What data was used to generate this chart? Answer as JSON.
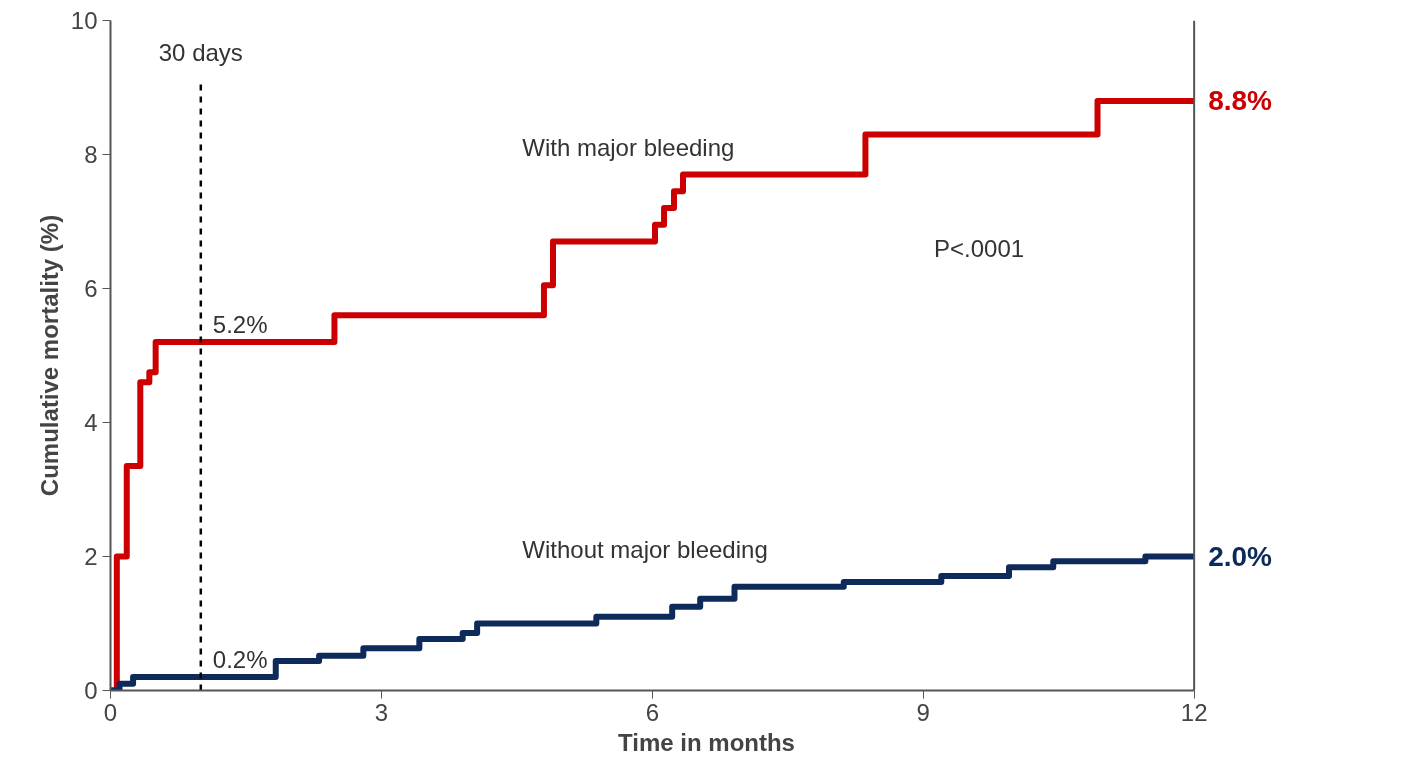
{
  "chart_data": {
    "type": "step",
    "xlabel": "Time in months",
    "ylabel": "Cumulative mortality (%)",
    "xlim": [
      0,
      12
    ],
    "ylim": [
      0,
      10
    ],
    "xticks": [
      0,
      3,
      6,
      9,
      12
    ],
    "yticks": [
      0,
      2,
      4,
      6,
      8,
      10
    ],
    "grid": false,
    "legend": false,
    "marker": "none",
    "line_style": "solid",
    "series": [
      {
        "name": "With major bleeding",
        "color": "#cc0000",
        "x": [
          0,
          0.07,
          0.18,
          0.33,
          0.43,
          0.5,
          2.48,
          4.8,
          4.9,
          6.03,
          6.13,
          6.24,
          6.34,
          8.36,
          10.93,
          12
        ],
        "values": [
          0,
          2.0,
          3.35,
          4.6,
          4.75,
          5.2,
          5.6,
          6.05,
          6.7,
          6.95,
          7.2,
          7.45,
          7.7,
          8.3,
          8.8,
          8.8
        ],
        "value_labels": [
          null,
          null,
          null,
          null,
          null,
          null,
          null,
          null,
          null,
          null,
          null,
          null,
          null,
          null,
          null,
          "8.8%"
        ]
      },
      {
        "name": "Without major bleeding",
        "color": "#0d2a5a",
        "x": [
          0,
          0.1,
          0.25,
          1.83,
          2.31,
          2.8,
          3.42,
          3.9,
          4.06,
          5.38,
          6.22,
          6.53,
          6.91,
          8.12,
          9.2,
          9.95,
          10.44,
          11.46,
          12
        ],
        "values": [
          0,
          0.1,
          0.2,
          0.44,
          0.52,
          0.63,
          0.77,
          0.86,
          1.0,
          1.1,
          1.25,
          1.37,
          1.55,
          1.62,
          1.71,
          1.84,
          1.93,
          2.0,
          2.0
        ],
        "value_labels": [
          null,
          null,
          null,
          null,
          null,
          null,
          null,
          null,
          null,
          null,
          null,
          null,
          null,
          null,
          null,
          null,
          null,
          null,
          "2.0%"
        ]
      }
    ],
    "ref_lines": [
      {
        "axis": "x",
        "value": 1,
        "label": "30 days",
        "color": "#000000",
        "line_style": "dashed"
      }
    ],
    "annotations": [
      {
        "text": "5.2%",
        "x": 1,
        "y": 5.2
      },
      {
        "text": "0.2%",
        "x": 1,
        "y": 0.2
      },
      "P<.0001"
    ]
  }
}
